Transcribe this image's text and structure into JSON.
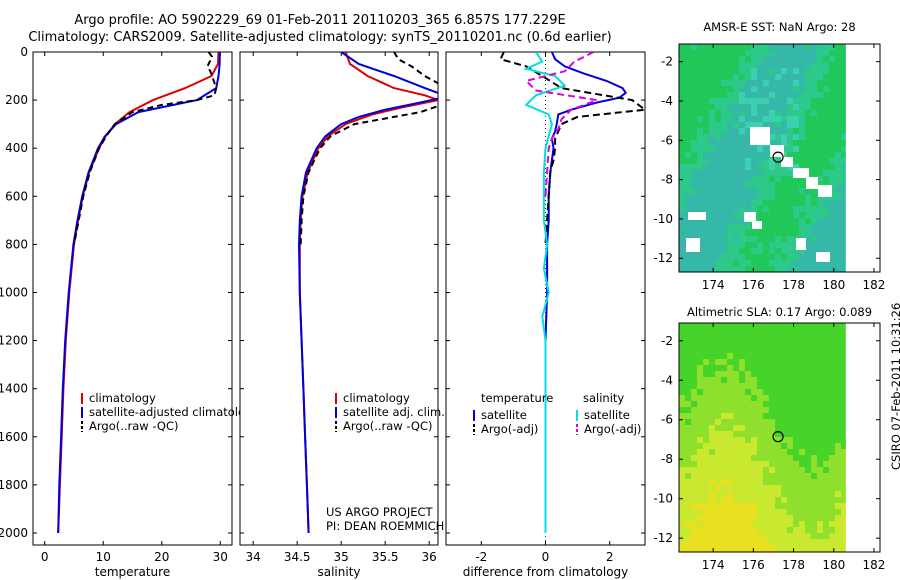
{
  "header": {
    "line1": "Argo profile: AO 5902229_69 01-Feb-2011 20110203_365 6.857S 177.229E",
    "line2": "Climatology: CARS2009. Satellite-adjusted climatology: synTS_20110201.nc (0.6d earlier)"
  },
  "signature": "CSIRO 07-Feb-2011 10:31:26",
  "credit": {
    "line1": "US ARGO PROJECT",
    "line2": "PI: DEAN ROEMMICH"
  },
  "colors": {
    "climatology": "#dd0000",
    "satellite": "#0000dd",
    "argo": "#000000",
    "sat_sal": "#00e0e0",
    "argo_sal": "#e000e0"
  },
  "chart_data": [
    {
      "type": "line",
      "title": "",
      "xlabel": "temperature",
      "ylabel": "",
      "xlim": [
        -2,
        32
      ],
      "ylim": [
        2050,
        0
      ],
      "xticks": [
        "0",
        "10",
        "20",
        "30"
      ],
      "xtick_values": [
        0,
        10,
        20,
        30
      ],
      "yticks": [
        "0",
        "200",
        "400",
        "600",
        "800",
        "1000",
        "1200",
        "1400",
        "1600",
        "1800",
        "2000"
      ],
      "ytick_values": [
        0,
        200,
        400,
        600,
        800,
        1000,
        1200,
        1400,
        1600,
        1800,
        2000
      ],
      "legend": [
        "climatology",
        "satellite-adjusted climatology",
        "Argo(..raw -QC)"
      ],
      "series": [
        {
          "name": "climatology",
          "color": "#dd0000",
          "dash": "",
          "depth": [
            0,
            50,
            100,
            150,
            200,
            250,
            300,
            350,
            400,
            500,
            600,
            700,
            800,
            1000,
            1200,
            1400,
            1600,
            1800,
            2000
          ],
          "values": [
            29.7,
            29.6,
            28.5,
            24,
            18.5,
            14.5,
            12,
            10.4,
            9.3,
            7.6,
            6.5,
            5.7,
            5.0,
            4.2,
            3.6,
            3.2,
            2.9,
            2.6,
            2.3
          ]
        },
        {
          "name": "satellite-adjusted climatology",
          "color": "#0000dd",
          "dash": "",
          "depth": [
            0,
            50,
            100,
            150,
            200,
            250,
            300,
            350,
            400,
            500,
            600,
            700,
            800,
            1000,
            1200,
            1400,
            1600,
            1800,
            2000
          ],
          "values": [
            29.9,
            29.9,
            29.7,
            29.3,
            26,
            16,
            12.2,
            10.3,
            9.1,
            7.5,
            6.4,
            5.6,
            4.9,
            4.1,
            3.5,
            3.1,
            2.8,
            2.5,
            2.3
          ]
        },
        {
          "name": "Argo(..raw -QC)",
          "color": "#000000",
          "dash": "6,4",
          "depth": [
            0,
            20,
            40,
            60,
            80,
            100,
            150,
            180,
            200,
            220,
            250,
            300,
            350,
            400,
            500,
            600,
            700,
            800
          ],
          "values": [
            28,
            28.6,
            28.2,
            27.8,
            28.3,
            28.6,
            29.3,
            29,
            26,
            20,
            15,
            12,
            10.5,
            9.3,
            7.7,
            6.6,
            5.8,
            5.0
          ]
        }
      ]
    },
    {
      "type": "line",
      "title": "",
      "xlabel": "salinity",
      "ylabel": "",
      "xlim": [
        33.85,
        36.1
      ],
      "ylim": [
        2050,
        0
      ],
      "xticks": [
        "34",
        "34.5",
        "35",
        "35.5",
        "36"
      ],
      "xtick_values": [
        34,
        34.5,
        35,
        35.5,
        36
      ],
      "legend": [
        "climatology",
        "satellite adj. clim.",
        "Argo(..raw -QC)"
      ],
      "series": [
        {
          "name": "climatology",
          "color": "#dd0000",
          "dash": "",
          "depth": [
            0,
            50,
            100,
            150,
            180,
            200,
            230,
            260,
            300,
            350,
            400,
            500,
            600,
            700,
            800,
            1000,
            1200,
            1400,
            1600,
            1800,
            2000
          ],
          "values": [
            35.05,
            35.1,
            35.3,
            35.6,
            35.95,
            36.1,
            35.7,
            35.35,
            35.05,
            34.85,
            34.74,
            34.62,
            34.56,
            34.54,
            34.53,
            34.53,
            34.55,
            34.57,
            34.59,
            34.61,
            34.63
          ]
        },
        {
          "name": "satellite adj. clim.",
          "color": "#0000dd",
          "dash": "",
          "depth": [
            0,
            50,
            100,
            150,
            170,
            190,
            210,
            240,
            270,
            300,
            350,
            400,
            500,
            600,
            700,
            800,
            1000,
            1200,
            1400,
            1600,
            1800,
            2000
          ],
          "values": [
            35.0,
            35.2,
            35.6,
            35.95,
            36.1,
            36.15,
            35.9,
            35.5,
            35.2,
            35.0,
            34.82,
            34.72,
            34.6,
            34.55,
            34.53,
            34.52,
            34.53,
            34.55,
            34.57,
            34.59,
            34.61,
            34.63
          ]
        },
        {
          "name": "Argo(..raw -QC)",
          "color": "#000000",
          "dash": "6,4",
          "depth": [
            0,
            30,
            60,
            100,
            150,
            200,
            250,
            300,
            350,
            400,
            500,
            600,
            700,
            800
          ],
          "values": [
            35.6,
            35.65,
            35.8,
            35.95,
            36.2,
            36.3,
            35.9,
            35.15,
            34.88,
            34.76,
            34.63,
            34.57,
            34.55,
            34.54
          ]
        }
      ]
    },
    {
      "type": "line",
      "title": "",
      "xlabel": "difference from climatology",
      "ylabel": "",
      "xlim": [
        -3.1,
        3.1
      ],
      "ylim": [
        2050,
        0
      ],
      "xticks": [
        "-2",
        "0",
        "2"
      ],
      "xtick_values": [
        -2,
        0,
        2
      ],
      "legend": [
        "temperature",
        "salinity",
        "satellite",
        "satellite",
        "Argo(-adj)",
        "Argo(-adj)"
      ],
      "series": [
        {
          "name": "temperature satellite",
          "color": "#0000dd",
          "dash": "",
          "depth": [
            0,
            30,
            60,
            90,
            120,
            150,
            170,
            190,
            210,
            240,
            260,
            300,
            330,
            360,
            400,
            450,
            500,
            600,
            700,
            800,
            900,
            1000,
            1200,
            1400,
            1600,
            1800,
            2000
          ],
          "values": [
            0.2,
            0.3,
            0.6,
            1.2,
            1.9,
            2.4,
            2.5,
            2.3,
            1.6,
            0.8,
            0.4,
            0.35,
            0.3,
            0.2,
            0.25,
            0.2,
            0.15,
            0.1,
            0.1,
            0.05,
            0.05,
            0.05,
            0.0,
            0.0,
            0.0,
            0.0,
            0.0
          ]
        },
        {
          "name": "temperature Argo(-adj)",
          "color": "#000000",
          "dash": "7,4",
          "depth": [
            0,
            30,
            60,
            100,
            150,
            200,
            240,
            270,
            300,
            330,
            360,
            400,
            450,
            500,
            600,
            700,
            800
          ],
          "values": [
            -1.3,
            -1.4,
            -0.6,
            -0.1,
            0.5,
            2.7,
            3.1,
            1.0,
            0.5,
            0.4,
            0.3,
            0.3,
            0.25,
            0.15,
            0.1,
            0.05,
            0.0
          ]
        },
        {
          "name": "salinity satellite",
          "color": "#00e0e0",
          "dash": "",
          "depth": [
            0,
            40,
            70,
            100,
            140,
            180,
            220,
            260,
            300,
            350,
            400,
            500,
            600,
            700,
            800,
            900,
            1000,
            1100,
            1200,
            1400,
            1600,
            1800,
            2000
          ],
          "values": [
            -0.3,
            -0.1,
            -0.6,
            0.3,
            0.6,
            -0.3,
            -0.6,
            0.1,
            0.2,
            0.1,
            0.0,
            -0.05,
            -0.05,
            -0.05,
            0.05,
            -0.05,
            0.1,
            -0.1,
            0.0,
            0.0,
            0.0,
            0.0,
            0.0
          ]
        },
        {
          "name": "salinity Argo(-adj)",
          "color": "#e000e0",
          "dash": "7,4",
          "depth": [
            0,
            40,
            80,
            120,
            160,
            200,
            240,
            280,
            320,
            360,
            400,
            500,
            600
          ],
          "values": [
            1.5,
            0.9,
            0.6,
            -0.6,
            -0.3,
            1.6,
            0.8,
            0.5,
            0.4,
            0.2,
            0.1,
            0.05,
            0.0
          ]
        }
      ]
    },
    {
      "type": "heatmap",
      "title": "AMSR-E SST: NaN Argo: 28",
      "xlim": [
        172.3,
        182.3
      ],
      "ylim": [
        -12.7,
        -1.1
      ],
      "xticks": [
        "174",
        "176",
        "178",
        "180",
        "182"
      ],
      "xtick_values": [
        174,
        176,
        178,
        180,
        182
      ],
      "yticks": [
        "-2",
        "-4",
        "-6",
        "-8",
        "-10",
        "-12"
      ],
      "ytick_values": [
        -2,
        -4,
        -6,
        -8,
        -10,
        -12
      ],
      "data_lon_max": 180.6,
      "marker": {
        "lon": 177.229,
        "lat": -6.857
      }
    },
    {
      "type": "heatmap",
      "title": "Altimetric SLA: 0.17 Argo: 0.089",
      "xlim": [
        172.3,
        182.3
      ],
      "ylim": [
        -12.7,
        -1.1
      ],
      "xticks": [
        "174",
        "176",
        "178",
        "180",
        "182"
      ],
      "xtick_values": [
        174,
        176,
        178,
        180,
        182
      ],
      "yticks": [
        "-2",
        "-4",
        "-6",
        "-8",
        "-10",
        "-12"
      ],
      "ytick_values": [
        -2,
        -4,
        -6,
        -8,
        -10,
        -12
      ],
      "data_lon_max": 180.6,
      "marker": {
        "lon": 177.229,
        "lat": -6.857
      }
    }
  ]
}
